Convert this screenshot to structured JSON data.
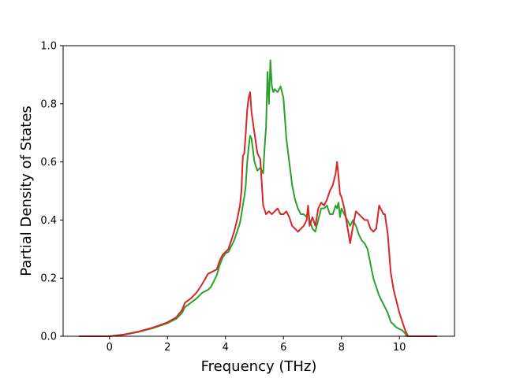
{
  "chart_data": {
    "type": "line",
    "title": "",
    "xlabel": "Frequency (THz)",
    "ylabel": "Partial Density of States",
    "xlim": [
      -1.6,
      11.9
    ],
    "ylim": [
      0,
      1.0
    ],
    "x_ticks": [
      0,
      2,
      4,
      6,
      8,
      10
    ],
    "y_ticks": [
      0.0,
      0.2,
      0.4,
      0.6,
      0.8,
      1.0
    ],
    "x_tick_labels": [
      "0",
      "2",
      "4",
      "6",
      "8",
      "10"
    ],
    "y_tick_labels": [
      "0.0",
      "0.2",
      "0.4",
      "0.6",
      "0.8",
      "1.0"
    ],
    "grid": false,
    "legend": "none",
    "series": [
      {
        "color": "#2ca02c",
        "x": [
          -1.05,
          0,
          0.5,
          1.0,
          1.5,
          2.0,
          2.3,
          2.5,
          2.6,
          2.8,
          3.0,
          3.2,
          3.4,
          3.5,
          3.6,
          3.7,
          3.8,
          3.9,
          4.0,
          4.1,
          4.2,
          4.3,
          4.4,
          4.5,
          4.55,
          4.6,
          4.65,
          4.7,
          4.75,
          4.8,
          4.85,
          4.9,
          5.0,
          5.1,
          5.2,
          5.3,
          5.35,
          5.4,
          5.45,
          5.5,
          5.55,
          5.6,
          5.65,
          5.7,
          5.8,
          5.9,
          6.0,
          6.05,
          6.1,
          6.2,
          6.3,
          6.4,
          6.5,
          6.6,
          6.7,
          6.8,
          6.85,
          6.9,
          7.0,
          7.1,
          7.2,
          7.3,
          7.4,
          7.5,
          7.6,
          7.7,
          7.8,
          7.85,
          7.9,
          7.95,
          8.0,
          8.1,
          8.2,
          8.3,
          8.4,
          8.5,
          8.6,
          8.7,
          8.8,
          8.9,
          9.0,
          9.1,
          9.2,
          9.3,
          9.4,
          9.5,
          9.6,
          9.7,
          9.8,
          9.9,
          10.0,
          10.1,
          10.2,
          10.25,
          11.3
        ],
        "values": [
          0,
          0,
          0.005,
          0.015,
          0.028,
          0.045,
          0.06,
          0.08,
          0.1,
          0.115,
          0.13,
          0.15,
          0.16,
          0.17,
          0.19,
          0.21,
          0.245,
          0.27,
          0.285,
          0.29,
          0.31,
          0.33,
          0.36,
          0.39,
          0.42,
          0.45,
          0.48,
          0.52,
          0.6,
          0.65,
          0.69,
          0.68,
          0.6,
          0.57,
          0.58,
          0.56,
          0.65,
          0.72,
          0.91,
          0.8,
          0.95,
          0.86,
          0.84,
          0.85,
          0.84,
          0.86,
          0.82,
          0.75,
          0.68,
          0.6,
          0.52,
          0.47,
          0.44,
          0.42,
          0.42,
          0.41,
          0.44,
          0.4,
          0.37,
          0.36,
          0.4,
          0.44,
          0.44,
          0.45,
          0.42,
          0.42,
          0.45,
          0.44,
          0.46,
          0.41,
          0.44,
          0.42,
          0.4,
          0.38,
          0.4,
          0.38,
          0.35,
          0.33,
          0.32,
          0.3,
          0.25,
          0.2,
          0.17,
          0.14,
          0.12,
          0.1,
          0.08,
          0.05,
          0.04,
          0.03,
          0.025,
          0.02,
          0.01,
          0.0,
          0.0
        ]
      },
      {
        "color": "#d62728",
        "x": [
          -1.05,
          0,
          0.5,
          1.0,
          1.5,
          2.0,
          2.3,
          2.5,
          2.6,
          2.8,
          3.0,
          3.2,
          3.4,
          3.5,
          3.6,
          3.7,
          3.8,
          3.9,
          4.0,
          4.1,
          4.2,
          4.3,
          4.4,
          4.5,
          4.55,
          4.6,
          4.65,
          4.7,
          4.75,
          4.8,
          4.85,
          4.9,
          5.0,
          5.1,
          5.2,
          5.3,
          5.4,
          5.5,
          5.6,
          5.7,
          5.8,
          5.9,
          6.0,
          6.1,
          6.2,
          6.3,
          6.4,
          6.5,
          6.6,
          6.7,
          6.8,
          6.85,
          6.9,
          7.0,
          7.1,
          7.2,
          7.3,
          7.4,
          7.5,
          7.6,
          7.7,
          7.8,
          7.85,
          7.9,
          7.95,
          8.0,
          8.1,
          8.2,
          8.3,
          8.4,
          8.5,
          8.6,
          8.7,
          8.8,
          8.9,
          9.0,
          9.1,
          9.2,
          9.3,
          9.4,
          9.45,
          9.5,
          9.6,
          9.7,
          9.8,
          9.9,
          10.0,
          10.1,
          10.2,
          10.3,
          10.35,
          11.3
        ],
        "values": [
          0,
          0,
          0.006,
          0.016,
          0.03,
          0.048,
          0.065,
          0.09,
          0.115,
          0.13,
          0.15,
          0.18,
          0.215,
          0.22,
          0.225,
          0.23,
          0.26,
          0.28,
          0.29,
          0.3,
          0.33,
          0.36,
          0.4,
          0.45,
          0.5,
          0.62,
          0.63,
          0.7,
          0.78,
          0.82,
          0.84,
          0.77,
          0.7,
          0.63,
          0.61,
          0.45,
          0.42,
          0.43,
          0.42,
          0.43,
          0.44,
          0.42,
          0.42,
          0.43,
          0.41,
          0.38,
          0.37,
          0.36,
          0.37,
          0.38,
          0.4,
          0.45,
          0.38,
          0.41,
          0.38,
          0.44,
          0.46,
          0.45,
          0.47,
          0.5,
          0.52,
          0.56,
          0.6,
          0.55,
          0.49,
          0.48,
          0.44,
          0.38,
          0.32,
          0.38,
          0.43,
          0.42,
          0.41,
          0.4,
          0.4,
          0.37,
          0.36,
          0.37,
          0.45,
          0.43,
          0.42,
          0.42,
          0.35,
          0.22,
          0.16,
          0.12,
          0.08,
          0.05,
          0.02,
          0.0,
          0.0,
          0.0
        ]
      }
    ]
  }
}
